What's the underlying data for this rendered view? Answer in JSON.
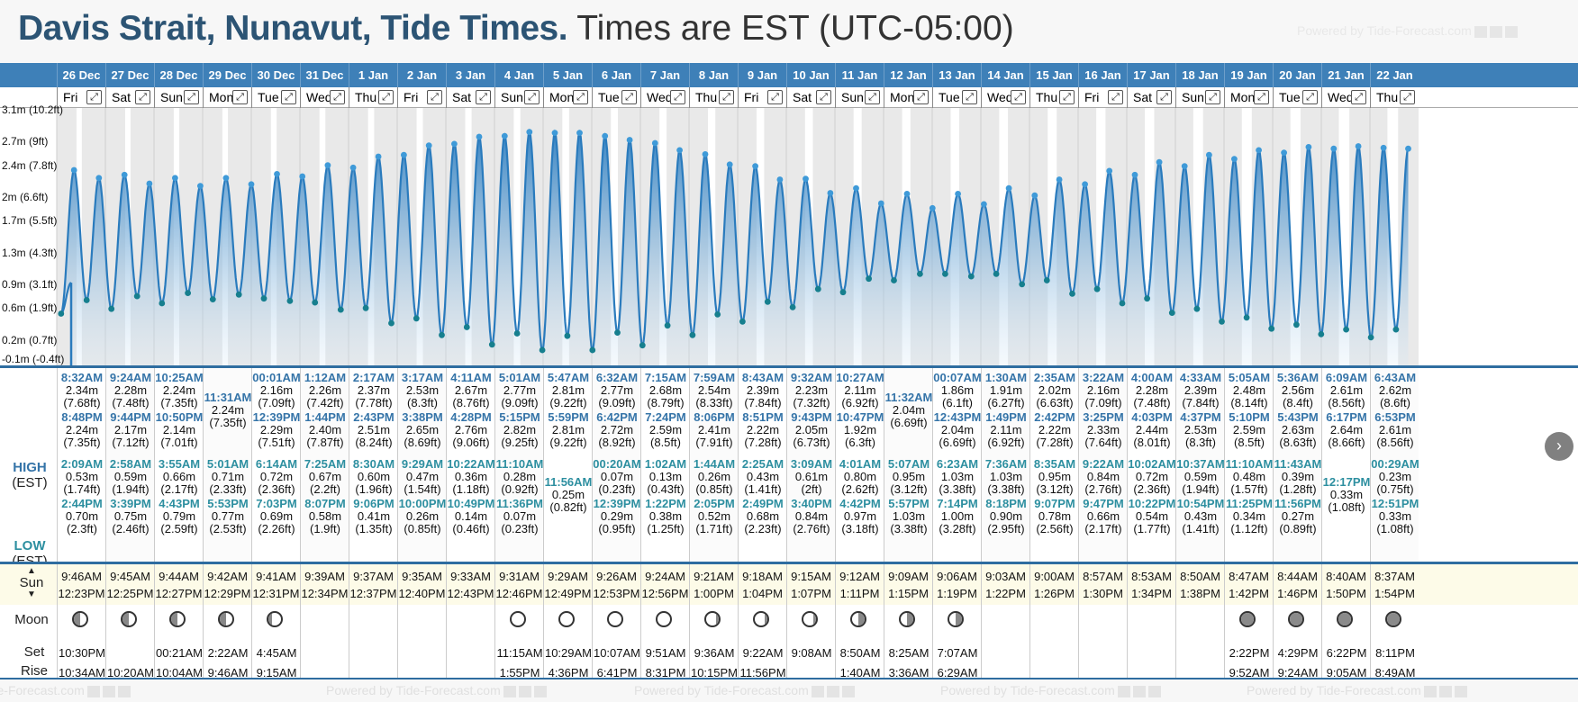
{
  "header": {
    "title_bold": "Davis Strait, Nunavut, Tide Times.",
    "title_tz": "Times are EST (UTC-05:00)",
    "powered": "Powered by Tide-Forecast.com"
  },
  "footer": {
    "powered": "Powered by Tide-Forecast.com"
  },
  "labels": {
    "high": "HIGH",
    "high_tz": "(EST)",
    "low": "LOW",
    "low_tz": "(EST)",
    "sun": "Sun",
    "moon": "Moon",
    "set": "Set",
    "rise": "Rise"
  },
  "y_axis": [
    "3.1m (10.2ft)",
    "2.7m (9ft)",
    "2.4m (7.8ft)",
    "2m (6.6ft)",
    "1.7m (5.5ft)",
    "1.3m (4.3ft)",
    "0.9m (3.1ft)",
    "0.6m (1.9ft)",
    "0.2m (0.7ft)",
    "-0.1m (-0.4ft)"
  ],
  "days": [
    {
      "date": "26 Dec",
      "dow": "Fri",
      "h": [
        [
          "8:32AM",
          "2.34m",
          "(7.68ft)"
        ],
        [
          "8:48PM",
          "2.24m",
          "(7.35ft)"
        ]
      ],
      "l": [
        [
          "2:09AM",
          "0.53m",
          "(1.74ft)"
        ],
        [
          "2:44PM",
          "0.70m",
          "(2.3ft)"
        ]
      ],
      "sun": [
        "9:46AM",
        "12:23PM"
      ],
      "moon": [
        "10:30PM",
        "10:34AM"
      ],
      "mp": "first"
    },
    {
      "date": "27 Dec",
      "dow": "Sat",
      "h": [
        [
          "9:24AM",
          "2.28m",
          "(7.48ft)"
        ],
        [
          "9:44PM",
          "2.17m",
          "(7.12ft)"
        ]
      ],
      "l": [
        [
          "2:58AM",
          "0.59m",
          "(1.94ft)"
        ],
        [
          "3:39PM",
          "0.75m",
          "(2.46ft)"
        ]
      ],
      "sun": [
        "9:45AM",
        "12:25PM"
      ],
      "moon": [
        "",
        "10:20AM"
      ],
      "mp": "first"
    },
    {
      "date": "28 Dec",
      "dow": "Sun",
      "h": [
        [
          "10:25AM",
          "2.24m",
          "(7.35ft)"
        ],
        [
          "10:50PM",
          "2.14m",
          "(7.01ft)"
        ]
      ],
      "l": [
        [
          "3:55AM",
          "0.66m",
          "(2.17ft)"
        ],
        [
          "4:43PM",
          "0.79m",
          "(2.59ft)"
        ]
      ],
      "sun": [
        "9:44AM",
        "12:27PM"
      ],
      "moon": [
        "00:21AM",
        "10:04AM"
      ],
      "mp": "first"
    },
    {
      "date": "29 Dec",
      "dow": "Mon",
      "h": [
        [
          "11:31AM",
          "2.24m",
          "(7.35ft)"
        ]
      ],
      "l": [
        [
          "5:01AM",
          "0.71m",
          "(2.33ft)"
        ],
        [
          "5:53PM",
          "0.77m",
          "(2.53ft)"
        ]
      ],
      "sun": [
        "9:42AM",
        "12:29PM"
      ],
      "moon": [
        "2:22AM",
        "9:46AM"
      ],
      "mp": "first"
    },
    {
      "date": "30 Dec",
      "dow": "Tue",
      "h": [
        [
          "00:01AM",
          "2.16m",
          "(7.09ft)"
        ],
        [
          "12:39PM",
          "2.29m",
          "(7.51ft)"
        ]
      ],
      "l": [
        [
          "6:14AM",
          "0.72m",
          "(2.36ft)"
        ],
        [
          "7:03PM",
          "0.69m",
          "(2.26ft)"
        ]
      ],
      "sun": [
        "9:41AM",
        "12:31PM"
      ],
      "moon": [
        "4:45AM",
        "9:15AM"
      ],
      "mp": "wax"
    },
    {
      "date": "31 Dec",
      "dow": "Wed",
      "h": [
        [
          "1:12AM",
          "2.26m",
          "(7.42ft)"
        ],
        [
          "1:44PM",
          "2.40m",
          "(7.87ft)"
        ]
      ],
      "l": [
        [
          "7:25AM",
          "0.67m",
          "(2.2ft)"
        ],
        [
          "8:07PM",
          "0.58m",
          "(1.9ft)"
        ]
      ],
      "sun": [
        "9:39AM",
        "12:34PM"
      ],
      "moon": [
        "",
        ""
      ],
      "mp": ""
    },
    {
      "date": "1 Jan",
      "dow": "Thu",
      "h": [
        [
          "2:17AM",
          "2.37m",
          "(7.78ft)"
        ],
        [
          "2:43PM",
          "2.51m",
          "(8.24ft)"
        ]
      ],
      "l": [
        [
          "8:30AM",
          "0.60m",
          "(1.96ft)"
        ],
        [
          "9:06PM",
          "0.41m",
          "(1.35ft)"
        ]
      ],
      "sun": [
        "9:37AM",
        "12:37PM"
      ],
      "moon": [
        "",
        ""
      ],
      "mp": ""
    },
    {
      "date": "2 Jan",
      "dow": "Fri",
      "h": [
        [
          "3:17AM",
          "2.53m",
          "(8.3ft)"
        ],
        [
          "3:38PM",
          "2.65m",
          "(8.69ft)"
        ]
      ],
      "l": [
        [
          "9:29AM",
          "0.47m",
          "(1.54ft)"
        ],
        [
          "10:00PM",
          "0.26m",
          "(0.85ft)"
        ]
      ],
      "sun": [
        "9:35AM",
        "12:40PM"
      ],
      "moon": [
        "",
        ""
      ],
      "mp": ""
    },
    {
      "date": "3 Jan",
      "dow": "Sat",
      "h": [
        [
          "4:11AM",
          "2.67m",
          "(8.76ft)"
        ],
        [
          "4:28PM",
          "2.76m",
          "(9.06ft)"
        ]
      ],
      "l": [
        [
          "10:22AM",
          "0.36m",
          "(1.18ft)"
        ],
        [
          "10:49PM",
          "0.14m",
          "(0.46ft)"
        ]
      ],
      "sun": [
        "9:33AM",
        "12:43PM"
      ],
      "moon": [
        "",
        ""
      ],
      "mp": ""
    },
    {
      "date": "4 Jan",
      "dow": "Sun",
      "h": [
        [
          "5:01AM",
          "2.77m",
          "(9.09ft)"
        ],
        [
          "5:15PM",
          "2.82m",
          "(9.25ft)"
        ]
      ],
      "l": [
        [
          "11:10AM",
          "0.28m",
          "(0.92ft)"
        ],
        [
          "11:36PM",
          "0.07m",
          "(0.23ft)"
        ]
      ],
      "sun": [
        "9:31AM",
        "12:46PM"
      ],
      "moon": [
        "11:15AM",
        "1:55PM"
      ],
      "mp": "full"
    },
    {
      "date": "5 Jan",
      "dow": "Mon",
      "h": [
        [
          "5:47AM",
          "2.81m",
          "(9.22ft)"
        ],
        [
          "5:59PM",
          "2.81m",
          "(9.22ft)"
        ]
      ],
      "l": [
        [
          "11:56AM",
          "0.25m",
          "(0.82ft)"
        ]
      ],
      "sun": [
        "9:29AM",
        "12:49PM"
      ],
      "moon": [
        "10:29AM",
        "4:36PM"
      ],
      "mp": "full"
    },
    {
      "date": "6 Jan",
      "dow": "Tue",
      "h": [
        [
          "6:32AM",
          "2.77m",
          "(9.09ft)"
        ],
        [
          "6:42PM",
          "2.72m",
          "(8.92ft)"
        ]
      ],
      "l": [
        [
          "00:20AM",
          "0.07m",
          "(0.23ft)"
        ],
        [
          "12:39PM",
          "0.29m",
          "(0.95ft)"
        ]
      ],
      "sun": [
        "9:26AM",
        "12:53PM"
      ],
      "moon": [
        "10:07AM",
        "6:41PM"
      ],
      "mp": "full"
    },
    {
      "date": "7 Jan",
      "dow": "Wed",
      "h": [
        [
          "7:15AM",
          "2.68m",
          "(8.79ft)"
        ],
        [
          "7:24PM",
          "2.59m",
          "(8.5ft)"
        ]
      ],
      "l": [
        [
          "1:02AM",
          "0.13m",
          "(0.43ft)"
        ],
        [
          "1:22PM",
          "0.38m",
          "(1.25ft)"
        ]
      ],
      "sun": [
        "9:24AM",
        "12:56PM"
      ],
      "moon": [
        "9:51AM",
        "8:31PM"
      ],
      "mp": "full"
    },
    {
      "date": "8 Jan",
      "dow": "Thu",
      "h": [
        [
          "7:59AM",
          "2.54m",
          "(8.33ft)"
        ],
        [
          "8:06PM",
          "2.41m",
          "(7.91ft)"
        ]
      ],
      "l": [
        [
          "1:44AM",
          "0.26m",
          "(0.85ft)"
        ],
        [
          "2:05PM",
          "0.52m",
          "(1.71ft)"
        ]
      ],
      "sun": [
        "9:21AM",
        "1:00PM"
      ],
      "moon": [
        "9:36AM",
        "10:15PM"
      ],
      "mp": "wan"
    },
    {
      "date": "9 Jan",
      "dow": "Fri",
      "h": [
        [
          "8:43AM",
          "2.39m",
          "(7.84ft)"
        ],
        [
          "8:51PM",
          "2.22m",
          "(7.28ft)"
        ]
      ],
      "l": [
        [
          "2:25AM",
          "0.43m",
          "(1.41ft)"
        ],
        [
          "2:49PM",
          "0.68m",
          "(2.23ft)"
        ]
      ],
      "sun": [
        "9:18AM",
        "1:04PM"
      ],
      "moon": [
        "9:22AM",
        "11:56PM"
      ],
      "mp": "wan"
    },
    {
      "date": "10 Jan",
      "dow": "Sat",
      "h": [
        [
          "9:32AM",
          "2.23m",
          "(7.32ft)"
        ],
        [
          "9:43PM",
          "2.05m",
          "(6.73ft)"
        ]
      ],
      "l": [
        [
          "3:09AM",
          "0.61m",
          "(2ft)"
        ],
        [
          "3:40PM",
          "0.84m",
          "(2.76ft)"
        ]
      ],
      "sun": [
        "9:15AM",
        "1:07PM"
      ],
      "moon": [
        "9:08AM",
        ""
      ],
      "mp": "wan"
    },
    {
      "date": "11 Jan",
      "dow": "Sun",
      "h": [
        [
          "10:27AM",
          "2.11m",
          "(6.92ft)"
        ],
        [
          "10:47PM",
          "1.92m",
          "(6.3ft)"
        ]
      ],
      "l": [
        [
          "4:01AM",
          "0.80m",
          "(2.62ft)"
        ],
        [
          "4:42PM",
          "0.97m",
          "(3.18ft)"
        ]
      ],
      "sun": [
        "9:12AM",
        "1:11PM"
      ],
      "moon": [
        "8:50AM",
        "1:40AM"
      ],
      "mp": "last"
    },
    {
      "date": "12 Jan",
      "dow": "Mon",
      "h": [
        [
          "11:32AM",
          "2.04m",
          "(6.69ft)"
        ]
      ],
      "l": [
        [
          "5:07AM",
          "0.95m",
          "(3.12ft)"
        ],
        [
          "5:57PM",
          "1.03m",
          "(3.38ft)"
        ]
      ],
      "sun": [
        "9:09AM",
        "1:15PM"
      ],
      "moon": [
        "8:25AM",
        "3:36AM"
      ],
      "mp": "last"
    },
    {
      "date": "13 Jan",
      "dow": "Tue",
      "h": [
        [
          "00:07AM",
          "1.86m",
          "(6.1ft)"
        ],
        [
          "12:43PM",
          "2.04m",
          "(6.69ft)"
        ]
      ],
      "l": [
        [
          "6:23AM",
          "1.03m",
          "(3.38ft)"
        ],
        [
          "7:14PM",
          "1.00m",
          "(3.28ft)"
        ]
      ],
      "sun": [
        "9:06AM",
        "1:19PM"
      ],
      "moon": [
        "7:07AM",
        "6:29AM"
      ],
      "mp": "last"
    },
    {
      "date": "14 Jan",
      "dow": "Wed",
      "h": [
        [
          "1:30AM",
          "1.91m",
          "(6.27ft)"
        ],
        [
          "1:49PM",
          "2.11m",
          "(6.92ft)"
        ]
      ],
      "l": [
        [
          "7:36AM",
          "1.03m",
          "(3.38ft)"
        ],
        [
          "8:18PM",
          "0.90m",
          "(2.95ft)"
        ]
      ],
      "sun": [
        "9:03AM",
        "1:22PM"
      ],
      "moon": [
        "",
        ""
      ],
      "mp": ""
    },
    {
      "date": "15 Jan",
      "dow": "Thu",
      "h": [
        [
          "2:35AM",
          "2.02m",
          "(6.63ft)"
        ],
        [
          "2:42PM",
          "2.22m",
          "(7.28ft)"
        ]
      ],
      "l": [
        [
          "8:35AM",
          "0.95m",
          "(3.12ft)"
        ],
        [
          "9:07PM",
          "0.78m",
          "(2.56ft)"
        ]
      ],
      "sun": [
        "9:00AM",
        "1:26PM"
      ],
      "moon": [
        "",
        ""
      ],
      "mp": ""
    },
    {
      "date": "16 Jan",
      "dow": "Fri",
      "h": [
        [
          "3:22AM",
          "2.16m",
          "(7.09ft)"
        ],
        [
          "3:25PM",
          "2.33m",
          "(7.64ft)"
        ]
      ],
      "l": [
        [
          "9:22AM",
          "0.84m",
          "(2.76ft)"
        ],
        [
          "9:47PM",
          "0.66m",
          "(2.17ft)"
        ]
      ],
      "sun": [
        "8:57AM",
        "1:30PM"
      ],
      "moon": [
        "",
        ""
      ],
      "mp": ""
    },
    {
      "date": "17 Jan",
      "dow": "Sat",
      "h": [
        [
          "4:00AM",
          "2.28m",
          "(7.48ft)"
        ],
        [
          "4:03PM",
          "2.44m",
          "(8.01ft)"
        ]
      ],
      "l": [
        [
          "10:02AM",
          "0.72m",
          "(2.36ft)"
        ],
        [
          "10:22PM",
          "0.54m",
          "(1.77ft)"
        ]
      ],
      "sun": [
        "8:53AM",
        "1:34PM"
      ],
      "moon": [
        "",
        ""
      ],
      "mp": ""
    },
    {
      "date": "18 Jan",
      "dow": "Sun",
      "h": [
        [
          "4:33AM",
          "2.39m",
          "(7.84ft)"
        ],
        [
          "4:37PM",
          "2.53m",
          "(8.3ft)"
        ]
      ],
      "l": [
        [
          "10:37AM",
          "0.59m",
          "(1.94ft)"
        ],
        [
          "10:54PM",
          "0.43m",
          "(1.41ft)"
        ]
      ],
      "sun": [
        "8:50AM",
        "1:38PM"
      ],
      "moon": [
        "",
        ""
      ],
      "mp": ""
    },
    {
      "date": "19 Jan",
      "dow": "Mon",
      "h": [
        [
          "5:05AM",
          "2.48m",
          "(8.14ft)"
        ],
        [
          "5:10PM",
          "2.59m",
          "(8.5ft)"
        ]
      ],
      "l": [
        [
          "11:10AM",
          "0.48m",
          "(1.57ft)"
        ],
        [
          "11:25PM",
          "0.34m",
          "(1.12ft)"
        ]
      ],
      "sun": [
        "8:47AM",
        "1:42PM"
      ],
      "moon": [
        "2:22PM",
        "9:52AM"
      ],
      "mp": "new"
    },
    {
      "date": "20 Jan",
      "dow": "Tue",
      "h": [
        [
          "5:36AM",
          "2.56m",
          "(8.4ft)"
        ],
        [
          "5:43PM",
          "2.63m",
          "(8.63ft)"
        ]
      ],
      "l": [
        [
          "11:43AM",
          "0.39m",
          "(1.28ft)"
        ],
        [
          "11:56PM",
          "0.27m",
          "(0.89ft)"
        ]
      ],
      "sun": [
        "8:44AM",
        "1:46PM"
      ],
      "moon": [
        "4:29PM",
        "9:24AM"
      ],
      "mp": "new"
    },
    {
      "date": "21 Jan",
      "dow": "Wed",
      "h": [
        [
          "6:09AM",
          "2.61m",
          "(8.56ft)"
        ],
        [
          "6:17PM",
          "2.64m",
          "(8.66ft)"
        ]
      ],
      "l": [
        [
          "12:17PM",
          "0.33m",
          "(1.08ft)"
        ]
      ],
      "sun": [
        "8:40AM",
        "1:50PM"
      ],
      "moon": [
        "6:22PM",
        "9:05AM"
      ],
      "mp": "new"
    },
    {
      "date": "22 Jan",
      "dow": "Thu",
      "h": [
        [
          "6:43AM",
          "2.62m",
          "(8.6ft)"
        ],
        [
          "6:53PM",
          "2.61m",
          "(8.56ft)"
        ]
      ],
      "l": [
        [
          "00:29AM",
          "0.23m",
          "(0.75ft)"
        ],
        [
          "12:51PM",
          "0.33m",
          "(1.08ft)"
        ]
      ],
      "sun": [
        "8:37AM",
        "1:54PM"
      ],
      "moon": [
        "8:11PM",
        "8:49AM"
      ],
      "mp": "new"
    }
  ]
}
